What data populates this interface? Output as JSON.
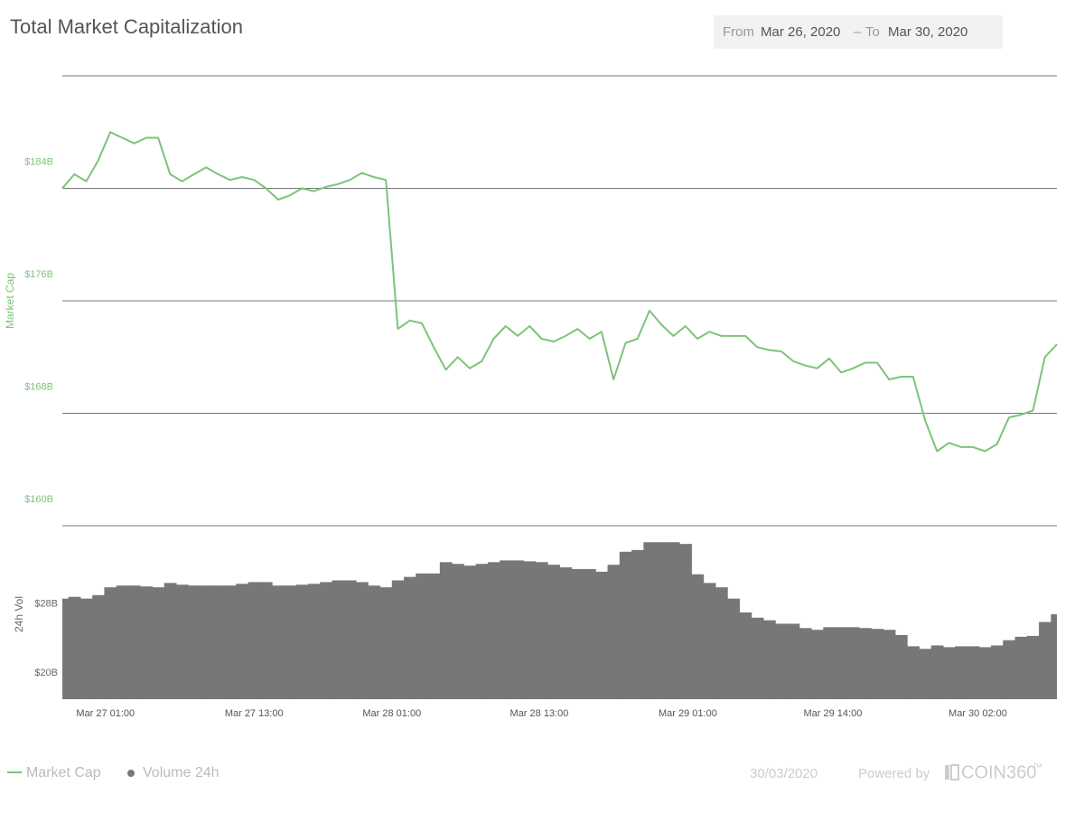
{
  "header": {
    "title": "Total Market Capitalization",
    "from_label": "From",
    "from_date": "Mar 26, 2020",
    "separator": "–",
    "to_label": "To",
    "to_date": "Mar 30, 2020"
  },
  "chart_data": {
    "type": "line",
    "xlim": [
      0,
      83
    ],
    "xticks": [
      {
        "value": 3.6,
        "label": "Mar 27 01:00"
      },
      {
        "value": 16,
        "label": "Mar 27 13:00"
      },
      {
        "value": 27.5,
        "label": "Mar 28 01:00"
      },
      {
        "value": 39.8,
        "label": "Mar 28 13:00"
      },
      {
        "value": 52.2,
        "label": "Mar 29 01:00"
      },
      {
        "value": 64.3,
        "label": "Mar 29 14:00"
      },
      {
        "value": 76.4,
        "label": "Mar 30 02:00"
      }
    ],
    "ylabel": "Market Cap",
    "ylim": [
      160,
      192
    ],
    "yticks": [
      {
        "value": 160,
        "label": "$160B"
      },
      {
        "value": 168,
        "label": "$168B"
      },
      {
        "value": 176,
        "label": "$176B"
      },
      {
        "value": 184,
        "label": "$184B"
      }
    ],
    "y2label": "24h Vol",
    "y2lim": [
      17,
      37
    ],
    "y2ticks": [
      {
        "value": 20,
        "label": "$20B"
      },
      {
        "value": 28,
        "label": "$28B"
      }
    ],
    "grid": true,
    "legend": "bottom-left",
    "series": [
      {
        "name": "Market Cap",
        "type": "line",
        "color": "#7cc47a",
        "values": [
          184.0,
          185.0,
          184.5,
          186.0,
          188.0,
          187.6,
          187.2,
          187.6,
          187.6,
          185.0,
          184.5,
          185.0,
          185.5,
          185.0,
          184.6,
          184.8,
          184.6,
          184.0,
          183.2,
          183.5,
          184.0,
          183.8,
          184.1,
          184.3,
          184.6,
          185.1,
          184.8,
          184.6,
          174.0,
          174.6,
          174.4,
          172.7,
          171.1,
          172.0,
          171.2,
          171.7,
          173.3,
          174.2,
          173.5,
          174.2,
          173.3,
          173.1,
          173.5,
          174.0,
          173.3,
          173.8,
          170.4,
          173.0,
          173.3,
          175.3,
          174.3,
          173.5,
          174.2,
          173.3,
          173.8,
          173.5,
          173.5,
          173.5,
          172.7,
          172.5,
          172.4,
          171.7,
          171.4,
          171.2,
          171.9,
          170.9,
          171.2,
          171.6,
          171.6,
          170.4,
          170.6,
          170.6,
          167.5,
          165.3,
          165.9,
          165.6,
          165.6,
          165.3,
          165.8,
          167.7,
          167.9,
          168.2,
          172.0,
          172.9
        ]
      },
      {
        "name": "Volume 24h",
        "type": "bar",
        "axis": "y2",
        "color": "#777777",
        "values": [
          28.6,
          28.8,
          28.6,
          29.0,
          29.9,
          30.1,
          30.1,
          30.0,
          29.9,
          30.4,
          30.2,
          30.1,
          30.1,
          30.1,
          30.1,
          30.3,
          30.5,
          30.5,
          30.1,
          30.1,
          30.2,
          30.3,
          30.5,
          30.7,
          30.7,
          30.5,
          30.1,
          29.9,
          30.7,
          31.1,
          31.5,
          31.5,
          32.8,
          32.6,
          32.4,
          32.6,
          32.8,
          33.0,
          33.0,
          32.9,
          32.8,
          32.5,
          32.2,
          32.0,
          32.0,
          31.7,
          32.5,
          34.0,
          34.2,
          35.1,
          35.1,
          35.1,
          34.9,
          31.4,
          30.4,
          29.9,
          28.6,
          27.0,
          26.4,
          26.1,
          25.7,
          25.7,
          25.2,
          25.0,
          25.3,
          25.3,
          25.3,
          25.2,
          25.1,
          25.0,
          24.4,
          23.1,
          22.8,
          23.2,
          23.0,
          23.1,
          23.1,
          23.0,
          23.2,
          23.8,
          24.2,
          24.3,
          25.9,
          26.8
        ]
      }
    ]
  },
  "footer": {
    "date": "30/03/2020",
    "powered": "Powered by",
    "brand": "COIN360",
    "tm": "™"
  }
}
